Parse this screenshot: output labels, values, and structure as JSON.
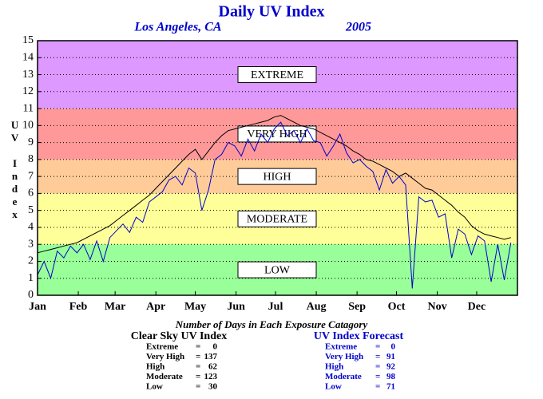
{
  "chart_data": {
    "type": "line",
    "title": "Daily UV Index",
    "subtitle": "Los Angeles, CA",
    "year": "2005",
    "ylabel": "UV Index",
    "xlim": [
      0,
      365
    ],
    "xticks": [
      {
        "value": 0,
        "label": "Jan"
      },
      {
        "value": 31,
        "label": "Feb"
      },
      {
        "value": 59,
        "label": "Mar"
      },
      {
        "value": 90,
        "label": "Apr"
      },
      {
        "value": 120,
        "label": "May"
      },
      {
        "value": 151,
        "label": "Jun"
      },
      {
        "value": 181,
        "label": "Jul"
      },
      {
        "value": 212,
        "label": "Aug"
      },
      {
        "value": 243,
        "label": "Sep"
      },
      {
        "value": 273,
        "label": "Oct"
      },
      {
        "value": 304,
        "label": "Nov"
      },
      {
        "value": 334,
        "label": "Dec"
      }
    ],
    "ylim": [
      0,
      15
    ],
    "yticks": [
      0,
      1,
      2,
      3,
      4,
      5,
      6,
      7,
      8,
      9,
      10,
      11,
      12,
      13,
      14,
      15
    ],
    "grid": true,
    "bands": [
      {
        "name": "LOW",
        "from": 0,
        "to": 3,
        "color": "#99ff99"
      },
      {
        "name": "MODERATE",
        "from": 3,
        "to": 6,
        "color": "#ffff99"
      },
      {
        "name": "HIGH",
        "from": 6,
        "to": 8,
        "color": "#ffcc99"
      },
      {
        "name": "VERY HIGH",
        "from": 8,
        "to": 11,
        "color": "#ff9999"
      },
      {
        "name": "EXTREME",
        "from": 11,
        "to": 15,
        "color": "#dd99ff"
      }
    ],
    "x": [
      0,
      5,
      10,
      15,
      20,
      25,
      30,
      35,
      40,
      45,
      50,
      55,
      60,
      65,
      70,
      75,
      80,
      85,
      90,
      95,
      100,
      105,
      110,
      115,
      120,
      125,
      130,
      135,
      140,
      145,
      150,
      155,
      160,
      165,
      170,
      175,
      180,
      185,
      190,
      195,
      200,
      205,
      210,
      215,
      220,
      225,
      230,
      235,
      240,
      245,
      250,
      255,
      260,
      265,
      270,
      275,
      280,
      285,
      290,
      295,
      300,
      305,
      310,
      315,
      320,
      325,
      330,
      335,
      340,
      345,
      350,
      355,
      360
    ],
    "series": [
      {
        "name": "Clear Sky UV Index",
        "color": "#000000",
        "values": [
          2.5,
          2.6,
          2.7,
          2.8,
          2.9,
          3.0,
          3.1,
          3.3,
          3.5,
          3.7,
          3.9,
          4.1,
          4.4,
          4.7,
          5.0,
          5.3,
          5.6,
          5.9,
          6.3,
          6.7,
          7.1,
          7.5,
          7.9,
          8.3,
          8.6,
          8.0,
          8.5,
          9.0,
          9.4,
          9.7,
          9.8,
          9.9,
          10.0,
          10.1,
          10.2,
          10.3,
          10.5,
          10.6,
          10.4,
          10.2,
          10.0,
          9.9,
          9.8,
          9.6,
          9.4,
          9.2,
          9.0,
          8.8,
          8.5,
          8.3,
          8.0,
          7.9,
          7.7,
          7.5,
          7.3,
          7.0,
          7.2,
          6.9,
          6.6,
          6.3,
          6.2,
          5.9,
          5.6,
          5.3,
          4.9,
          4.6,
          4.1,
          3.8,
          3.6,
          3.5,
          3.4,
          3.3,
          3.4
        ]
      },
      {
        "name": "UV Index Forecast",
        "color": "#0000cc",
        "values": [
          1.2,
          2.0,
          1.0,
          2.6,
          2.2,
          2.9,
          2.5,
          3.0,
          2.1,
          3.2,
          2.0,
          3.4,
          3.8,
          4.2,
          3.7,
          4.6,
          4.3,
          5.5,
          5.8,
          6.1,
          6.8,
          7.0,
          6.5,
          7.5,
          7.2,
          5.0,
          6.2,
          8.0,
          8.3,
          9.0,
          8.8,
          8.2,
          9.2,
          8.5,
          9.5,
          9.0,
          9.8,
          10.2,
          9.4,
          9.7,
          9.0,
          9.8,
          9.1,
          9.0,
          8.2,
          8.8,
          9.5,
          8.4,
          7.8,
          8.0,
          7.6,
          7.3,
          6.2,
          7.4,
          6.6,
          7.0,
          6.5,
          0.4,
          5.8,
          5.5,
          5.6,
          4.6,
          4.8,
          2.2,
          3.9,
          3.6,
          2.4,
          3.5,
          3.2,
          0.8,
          3.0,
          0.9,
          3.1
        ]
      }
    ],
    "summary_title": "Number of Days in Each Exposure Catagory",
    "separator": "=",
    "tables": [
      {
        "title": "Clear Sky UV Index",
        "color": "#000000",
        "rows": [
          {
            "label": "Extreme",
            "value": 0
          },
          {
            "label": "Very High",
            "value": 137
          },
          {
            "label": "High",
            "value": 62
          },
          {
            "label": "Moderate",
            "value": 123
          },
          {
            "label": "Low",
            "value": 30
          }
        ]
      },
      {
        "title": "UV Index Forecast",
        "color": "#0000cc",
        "rows": [
          {
            "label": "Extreme",
            "value": 0
          },
          {
            "label": "Very High",
            "value": 91
          },
          {
            "label": "High",
            "value": 92
          },
          {
            "label": "Moderate",
            "value": 98
          },
          {
            "label": "Low",
            "value": 71
          }
        ]
      }
    ]
  }
}
